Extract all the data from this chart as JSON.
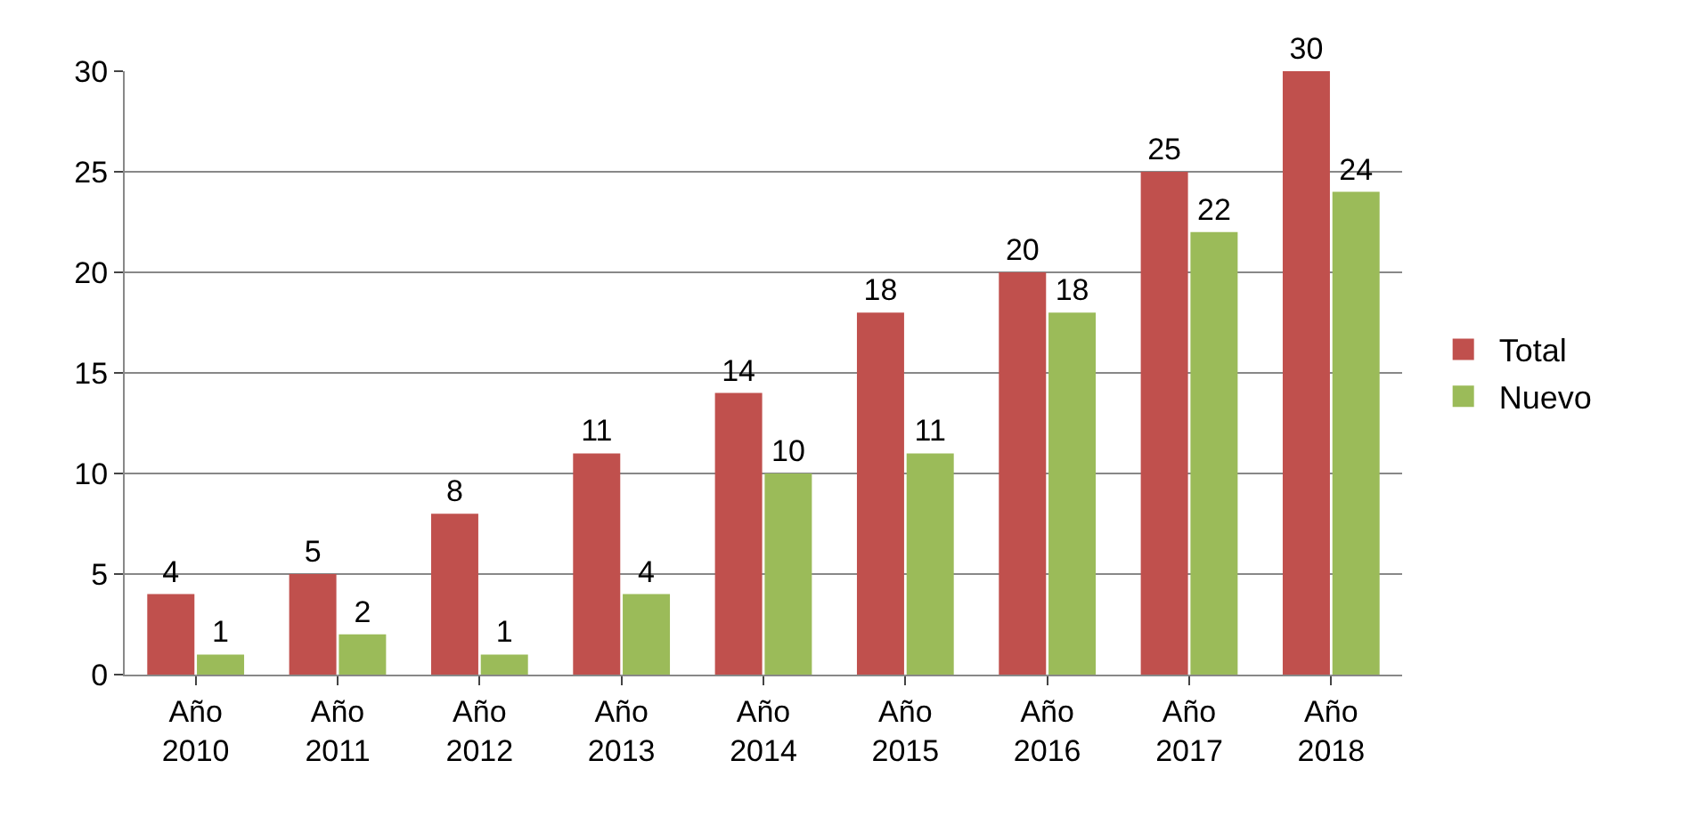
{
  "chart_data": {
    "type": "bar",
    "categories": [
      "Año 2010",
      "Año 2011",
      "Año 2012",
      "Año 2013",
      "Año 2014",
      "Año 2015",
      "Año 2016",
      "Año 2017",
      "Año 2018"
    ],
    "series": [
      {
        "name": "Total",
        "color": "#c0504d",
        "values": [
          4,
          5,
          8,
          11,
          14,
          18,
          20,
          25,
          30
        ]
      },
      {
        "name": "Nuevo",
        "color": "#9bbb59",
        "values": [
          1,
          2,
          1,
          4,
          10,
          11,
          18,
          22,
          24
        ]
      }
    ],
    "ylim": [
      0,
      30
    ],
    "yticks": [
      0,
      5,
      10,
      15,
      20,
      25,
      30
    ],
    "grid": "y",
    "legend": "right",
    "data_labels": true
  }
}
